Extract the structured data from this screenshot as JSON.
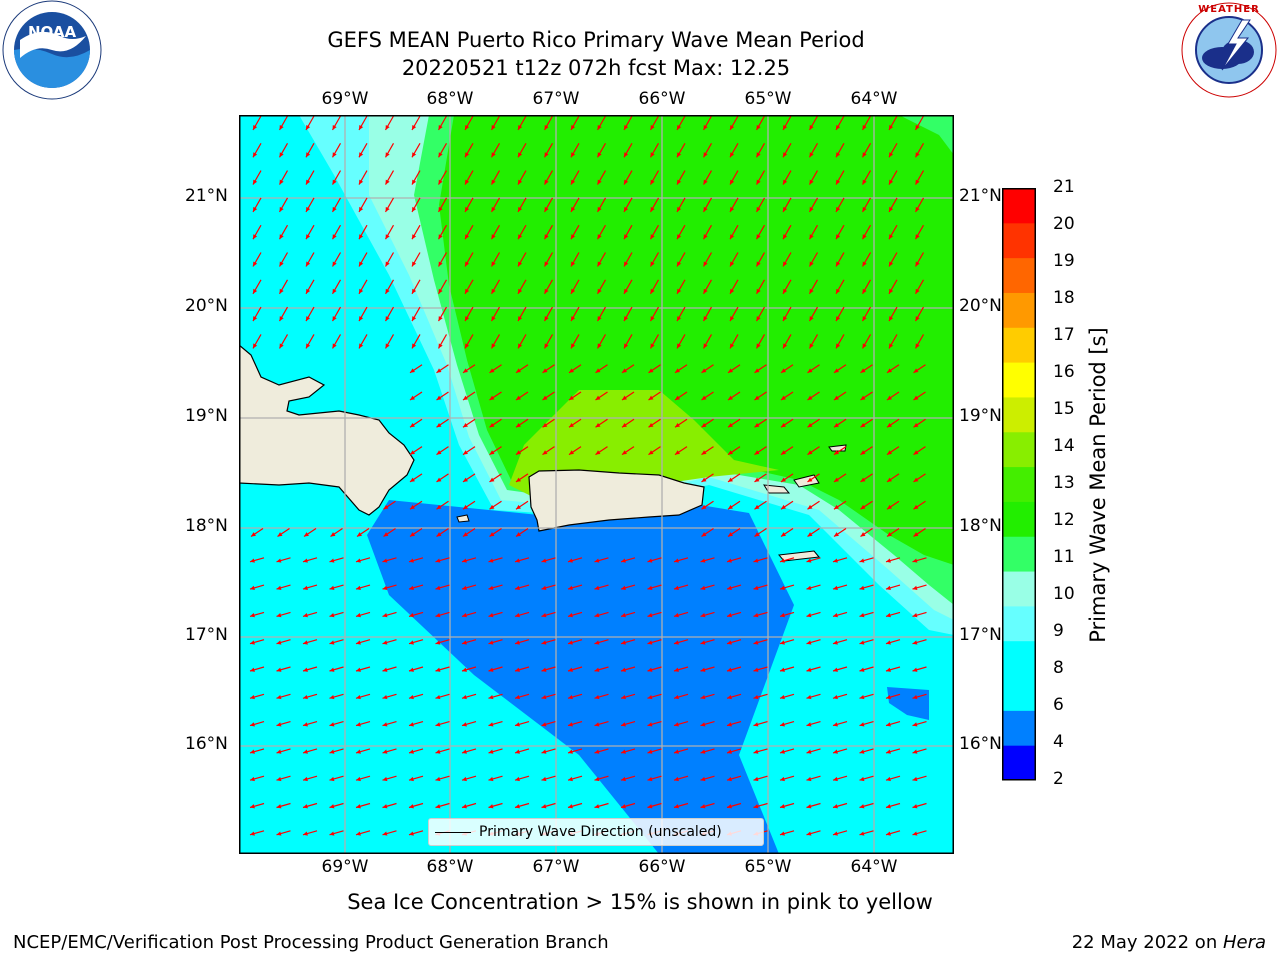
{
  "title": {
    "line1": "GEFS MEAN Puerto Rico Primary Wave Mean Period",
    "line2": "20220521 t12z 072h fcst   Max: 12.25"
  },
  "logos": {
    "noaa_text": "NOAA",
    "noaa_ring_text": "NATIONAL OCEANIC AND ATMOSPHERIC ADMINISTRATION · U.S. DEPARTMENT OF COMMERCE",
    "nws_ring_text": "NATIONAL WEATHER SERVICE"
  },
  "map": {
    "lon_labels": [
      "69°W",
      "68°W",
      "67°W",
      "66°W",
      "65°W",
      "64°W"
    ],
    "lat_labels": [
      "21°N",
      "20°N",
      "19°N",
      "18°N",
      "17°N",
      "16°N"
    ],
    "arrow_color": "#ff0000",
    "land_color": "#efecdc"
  },
  "legend": {
    "label": "Primary Wave Direction (unscaled)"
  },
  "colorbar": {
    "label": "Primary Wave Mean Period [s]",
    "ticks": [
      "21",
      "20",
      "19",
      "18",
      "17",
      "16",
      "15",
      "14",
      "13",
      "12",
      "11",
      "10",
      "9",
      "8",
      "6",
      "4",
      "2"
    ],
    "colors": [
      "#0000ff",
      "#0080ff",
      "#00ffff",
      "#00ffff",
      "#66ffff",
      "#99ffe6",
      "#33ff66",
      "#22ee00",
      "#44ee00",
      "#88ee00",
      "#ccee00",
      "#ffff00",
      "#ffcc00",
      "#ff9900",
      "#ff6600",
      "#ff3300",
      "#ff0000"
    ]
  },
  "sea_ice_note": "Sea Ice Concentration > 15% is shown in pink to yellow",
  "footer": {
    "left": "NCEP/EMC/Verification Post Processing Product Generation Branch",
    "right_date": "22 May 2022 on ",
    "right_host": "Hera"
  }
}
